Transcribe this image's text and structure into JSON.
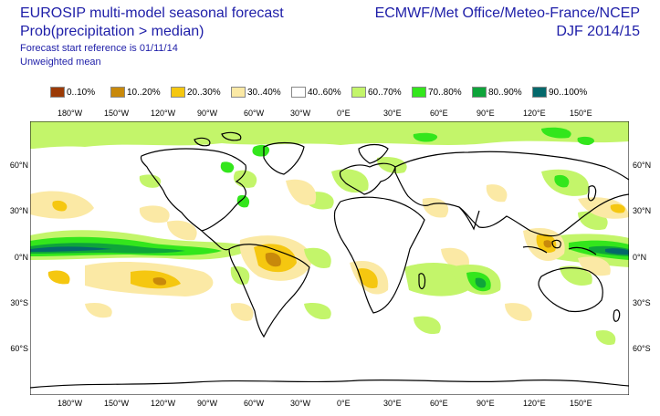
{
  "header": {
    "title_line1": "EUROSIP multi-model seasonal forecast",
    "title_line2": "Prob(precipitation > median)",
    "subtitle1": "Forecast start reference is 01/11/14",
    "subtitle2": "Unweighted mean",
    "right_line1": "ECMWF/Met Office/Meteo-France/NCEP",
    "right_line2": "DJF 2014/15"
  },
  "legend": [
    {
      "label": "0..10%",
      "color": "#9b3a06"
    },
    {
      "label": "10..20%",
      "color": "#c8890b"
    },
    {
      "label": "20..30%",
      "color": "#f5c710"
    },
    {
      "label": "30..40%",
      "color": "#fbe9a5"
    },
    {
      "label": "40..60%",
      "color": "#ffffff"
    },
    {
      "label": "60..70%",
      "color": "#c3f56a"
    },
    {
      "label": "70..80%",
      "color": "#33e61c"
    },
    {
      "label": "80..90%",
      "color": "#0ea43a"
    },
    {
      "label": "90..100%",
      "color": "#04686b"
    }
  ],
  "lon_labels": [
    "180°W",
    "150°W",
    "120°W",
    "90°W",
    "60°W",
    "30°W",
    "0°E",
    "30°E",
    "60°E",
    "90°E",
    "120°E",
    "150°E"
  ],
  "lat_labels": [
    "60°N",
    "30°N",
    "0°N",
    "30°S",
    "60°S"
  ]
}
